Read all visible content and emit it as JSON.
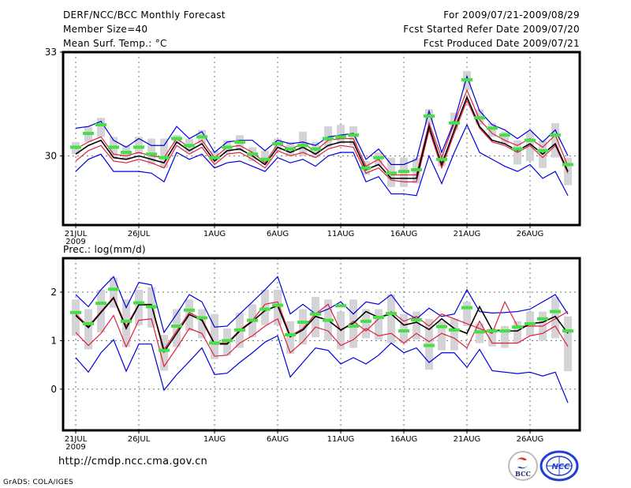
{
  "header": {
    "title": "DERF/NCC/BCC Monthly Forecast",
    "member_size": "Member Size=40",
    "variable_top": "Mean Surf. Temp.: °C",
    "period": "For 2009/07/21-2009/08/29",
    "fcst_started": "Fcst Started Refer Date 2009/07/20",
    "fcst_produced": "Fcst Produced Date 2009/07/21"
  },
  "footer": {
    "url": "http://cmdp.ncc.cma.gov.cn",
    "credit": "GrADS: COLA/IGES",
    "logo_left": "BCC",
    "logo_right": "NCC"
  },
  "colors": {
    "mean": "#000000",
    "spread": "#e0203c",
    "envelope": "#0000e0",
    "marker": "#44e044",
    "box": "#d4d4d8",
    "grid": "#707070"
  },
  "chart_data": [
    {
      "type": "line",
      "title": "Mean Surf. Temp.: °C",
      "xlabel": "",
      "ylabel": "°C",
      "ylim": [
        28,
        33
      ],
      "yticks": [
        "30",
        "33"
      ],
      "ytick_values": [
        30,
        33
      ],
      "xticks": [
        "21JUL",
        "26JUL",
        "1AUG",
        "6AUG",
        "11AUG",
        "16AUG",
        "21AUG",
        "26AUG"
      ],
      "xtick_days": [
        0,
        5,
        11,
        16,
        21,
        26,
        31,
        36
      ],
      "xtick_year": "2009",
      "grid": true,
      "x_days": [
        0,
        1,
        2,
        3,
        4,
        5,
        6,
        7,
        8,
        9,
        10,
        11,
        12,
        13,
        14,
        15,
        16,
        17,
        18,
        19,
        20,
        21,
        22,
        23,
        24,
        25,
        26,
        27,
        28,
        29,
        30,
        31,
        32,
        33,
        34,
        35,
        36,
        37,
        38,
        39
      ],
      "series": [
        {
          "name": "ensemble-max",
          "color": "blue",
          "values": [
            30.8,
            30.85,
            31.0,
            30.45,
            30.25,
            30.5,
            30.3,
            30.3,
            30.85,
            30.5,
            30.7,
            30.1,
            30.4,
            30.45,
            30.45,
            30.15,
            30.45,
            30.35,
            30.4,
            30.3,
            30.55,
            30.6,
            30.65,
            29.9,
            30.2,
            29.75,
            29.75,
            29.9,
            31.3,
            30.1,
            31.0,
            32.3,
            31.3,
            30.9,
            30.75,
            30.5,
            30.75,
            30.4,
            30.75,
            30.0
          ]
        },
        {
          "name": "spread-upper",
          "color": "red",
          "values": [
            30.2,
            30.4,
            30.55,
            30.05,
            30.0,
            30.1,
            30.0,
            29.95,
            30.5,
            30.25,
            30.45,
            29.95,
            30.25,
            30.3,
            30.1,
            29.8,
            30.35,
            30.2,
            30.35,
            30.15,
            30.45,
            30.5,
            30.5,
            29.7,
            29.9,
            29.45,
            29.45,
            29.45,
            30.95,
            29.95,
            30.95,
            31.9,
            31.05,
            30.65,
            30.45,
            30.3,
            30.5,
            30.25,
            30.6,
            29.7
          ]
        },
        {
          "name": "ensemble-mean",
          "color": "black",
          "values": [
            30.05,
            30.3,
            30.45,
            29.95,
            29.9,
            30.0,
            29.9,
            29.8,
            30.4,
            30.15,
            30.35,
            29.85,
            30.15,
            30.2,
            30.0,
            29.75,
            30.25,
            30.1,
            30.25,
            30.05,
            30.3,
            30.4,
            30.4,
            29.6,
            29.75,
            29.35,
            29.35,
            29.35,
            30.85,
            29.75,
            30.75,
            31.7,
            30.85,
            30.45,
            30.35,
            30.15,
            30.35,
            30.05,
            30.35,
            29.55
          ]
        },
        {
          "name": "spread-lower",
          "color": "red",
          "values": [
            29.85,
            30.15,
            30.3,
            29.85,
            29.8,
            29.9,
            29.8,
            29.65,
            30.3,
            30.05,
            30.25,
            29.75,
            30.05,
            30.1,
            29.9,
            29.65,
            30.15,
            30.0,
            30.1,
            29.95,
            30.2,
            30.3,
            30.25,
            29.5,
            29.65,
            29.3,
            29.25,
            29.25,
            30.75,
            29.65,
            30.65,
            31.6,
            30.8,
            30.4,
            30.3,
            30.1,
            30.3,
            29.95,
            30.3,
            29.5
          ]
        },
        {
          "name": "ensemble-min",
          "color": "blue",
          "values": [
            29.55,
            29.9,
            30.05,
            29.55,
            29.55,
            29.55,
            29.5,
            29.25,
            30.1,
            29.9,
            30.05,
            29.65,
            29.8,
            29.85,
            29.7,
            29.55,
            29.95,
            29.8,
            29.9,
            29.7,
            30.0,
            30.1,
            30.1,
            29.25,
            29.4,
            28.9,
            28.9,
            28.85,
            30.0,
            29.2,
            30.1,
            30.9,
            30.1,
            29.9,
            29.7,
            29.55,
            29.75,
            29.35,
            29.55,
            28.85
          ]
        },
        {
          "name": "marker",
          "color": "green",
          "values": [
            30.25,
            30.65,
            30.9,
            30.25,
            30.1,
            30.25,
            30.05,
            29.95,
            30.5,
            30.3,
            30.55,
            29.95,
            30.25,
            30.4,
            30.05,
            29.9,
            30.35,
            30.2,
            30.3,
            30.2,
            30.5,
            30.55,
            30.6,
            29.65,
            29.95,
            29.5,
            29.55,
            29.6,
            31.15,
            29.9,
            30.95,
            32.2,
            31.1,
            30.8,
            30.6,
            30.2,
            30.45,
            30.15,
            30.6,
            29.75
          ]
        },
        {
          "name": "box-high",
          "color": "gray",
          "values": [
            30.4,
            30.85,
            31.1,
            30.55,
            30.3,
            30.55,
            30.5,
            30.5,
            30.6,
            30.5,
            30.75,
            30.15,
            30.45,
            30.6,
            30.25,
            30.15,
            30.5,
            30.4,
            30.7,
            30.4,
            30.85,
            30.9,
            30.85,
            29.85,
            30.1,
            29.95,
            29.95,
            29.95,
            31.35,
            30.05,
            31.25,
            32.45,
            31.35,
            30.95,
            30.7,
            30.45,
            30.7,
            30.45,
            30.95,
            29.95
          ]
        },
        {
          "name": "box-low",
          "color": "gray",
          "values": [
            30.05,
            30.4,
            30.55,
            29.95,
            29.9,
            30.05,
            29.75,
            29.65,
            30.35,
            30.1,
            30.35,
            29.85,
            30.05,
            30.15,
            29.85,
            29.75,
            30.15,
            30.0,
            30.0,
            29.95,
            30.25,
            30.35,
            30.3,
            29.45,
            29.7,
            29.1,
            29.1,
            29.2,
            30.9,
            29.7,
            30.75,
            31.9,
            30.9,
            30.55,
            30.35,
            29.75,
            29.85,
            29.65,
            29.95,
            29.15
          ]
        }
      ]
    },
    {
      "type": "line",
      "title": "Prec.: log(mm/d)",
      "xlabel": "",
      "ylabel": "log(mm/d)",
      "ylim": [
        -0.85,
        2.7
      ],
      "yticks": [
        "0",
        "1",
        "2"
      ],
      "ytick_values": [
        0,
        1,
        2
      ],
      "xticks": [
        "21JUL",
        "26JUL",
        "1AUG",
        "6AUG",
        "11AUG",
        "16AUG",
        "21AUG",
        "26AUG"
      ],
      "xtick_days": [
        0,
        5,
        11,
        16,
        21,
        26,
        31,
        36
      ],
      "xtick_year": "2009",
      "grid": true,
      "x_days": [
        0,
        1,
        2,
        3,
        4,
        5,
        6,
        7,
        8,
        9,
        10,
        11,
        12,
        13,
        14,
        15,
        16,
        17,
        18,
        19,
        20,
        21,
        22,
        23,
        24,
        25,
        26,
        27,
        28,
        29,
        30,
        31,
        32,
        33,
        34,
        35,
        36,
        37,
        38,
        39
      ],
      "series": [
        {
          "name": "ensemble-max",
          "color": "blue",
          "values": [
            1.95,
            1.7,
            2.05,
            2.32,
            1.68,
            2.2,
            2.15,
            1.17,
            1.55,
            1.95,
            1.8,
            1.28,
            1.3,
            1.55,
            1.8,
            2.05,
            2.32,
            1.55,
            1.75,
            1.55,
            1.65,
            1.8,
            1.55,
            1.8,
            1.75,
            1.95,
            1.6,
            1.45,
            1.67,
            1.5,
            1.55,
            2.05,
            1.6,
            1.57,
            1.58,
            1.6,
            1.65,
            1.8,
            1.95,
            1.55
          ]
        },
        {
          "name": "spread-upper",
          "color": "red",
          "values": [
            1.55,
            1.3,
            1.6,
            1.9,
            1.3,
            1.75,
            1.75,
            0.82,
            1.2,
            1.58,
            1.45,
            0.95,
            0.95,
            1.22,
            1.42,
            1.75,
            1.8,
            1.1,
            1.25,
            1.55,
            1.75,
            1.2,
            1.4,
            1.2,
            1.45,
            1.6,
            1.4,
            1.5,
            1.3,
            1.55,
            1.45,
            1.35,
            1.25,
            1.15,
            1.8,
            1.3,
            1.3,
            1.3,
            1.45,
            1.6
          ]
        },
        {
          "name": "ensemble-mean",
          "color": "black",
          "values": [
            1.52,
            1.27,
            1.58,
            1.88,
            1.25,
            1.74,
            1.74,
            0.77,
            1.15,
            1.54,
            1.42,
            0.93,
            0.93,
            1.2,
            1.4,
            1.62,
            1.72,
            1.08,
            1.22,
            1.5,
            1.42,
            1.22,
            1.36,
            1.6,
            1.48,
            1.55,
            1.32,
            1.38,
            1.23,
            1.45,
            1.25,
            1.15,
            1.7,
            1.22,
            1.2,
            1.2,
            1.35,
            1.38,
            1.5,
            1.15
          ]
        },
        {
          "name": "spread-lower",
          "color": "red",
          "values": [
            1.17,
            0.9,
            1.15,
            1.52,
            0.87,
            1.42,
            1.45,
            0.47,
            0.85,
            1.25,
            1.15,
            0.68,
            0.7,
            0.95,
            1.1,
            1.3,
            1.45,
            0.75,
            0.98,
            1.28,
            1.2,
            0.9,
            1.02,
            1.25,
            1.1,
            1.15,
            0.95,
            1.15,
            0.98,
            1.15,
            1.05,
            0.85,
            1.4,
            0.95,
            0.95,
            0.95,
            1.1,
            1.15,
            1.3,
            0.88
          ]
        },
        {
          "name": "ensemble-min",
          "color": "blue",
          "values": [
            0.65,
            0.35,
            0.75,
            1.02,
            0.37,
            0.93,
            0.93,
            -0.02,
            0.3,
            0.57,
            0.85,
            0.3,
            0.33,
            0.55,
            0.75,
            0.97,
            1.1,
            0.25,
            0.55,
            0.85,
            0.8,
            0.52,
            0.65,
            0.52,
            0.7,
            0.95,
            0.75,
            0.85,
            0.55,
            0.75,
            0.75,
            0.45,
            0.82,
            0.38,
            0.35,
            0.32,
            0.35,
            0.27,
            0.35,
            -0.28
          ]
        },
        {
          "name": "marker",
          "color": "green",
          "values": [
            1.58,
            1.35,
            1.77,
            2.06,
            1.4,
            1.78,
            1.7,
            0.8,
            1.3,
            1.63,
            1.47,
            0.95,
            1.0,
            1.22,
            1.42,
            1.65,
            1.73,
            1.12,
            1.38,
            1.55,
            1.42,
            1.72,
            1.3,
            1.4,
            1.48,
            1.56,
            1.2,
            1.43,
            0.9,
            1.29,
            1.22,
            1.68,
            1.18,
            1.2,
            1.2,
            1.28,
            1.35,
            1.45,
            1.6,
            1.2
          ]
        },
        {
          "name": "box-high",
          "color": "gray",
          "values": [
            1.85,
            1.65,
            2.05,
            2.3,
            1.85,
            2.05,
            2.1,
            1.12,
            1.65,
            1.85,
            1.65,
            1.55,
            1.25,
            1.58,
            1.75,
            2.05,
            2.05,
            1.4,
            1.65,
            1.9,
            1.85,
            1.6,
            1.85,
            1.65,
            1.65,
            1.95,
            1.55,
            1.6,
            1.45,
            1.4,
            1.45,
            1.8,
            1.35,
            1.25,
            1.3,
            1.4,
            1.6,
            1.6,
            1.9,
            1.5
          ]
        },
        {
          "name": "box-low",
          "color": "gray",
          "values": [
            1.1,
            0.82,
            1.17,
            1.68,
            0.87,
            1.32,
            1.27,
            0.38,
            0.87,
            1.2,
            1.05,
            0.62,
            0.7,
            0.85,
            1.07,
            1.32,
            1.32,
            0.73,
            0.92,
            1.07,
            1.0,
            0.82,
            0.85,
            1.05,
            1.02,
            0.95,
            0.95,
            1.02,
            0.4,
            0.8,
            0.8,
            1.3,
            0.95,
            0.88,
            0.85,
            0.95,
            1.1,
            1.0,
            1.05,
            0.37
          ]
        }
      ]
    }
  ]
}
